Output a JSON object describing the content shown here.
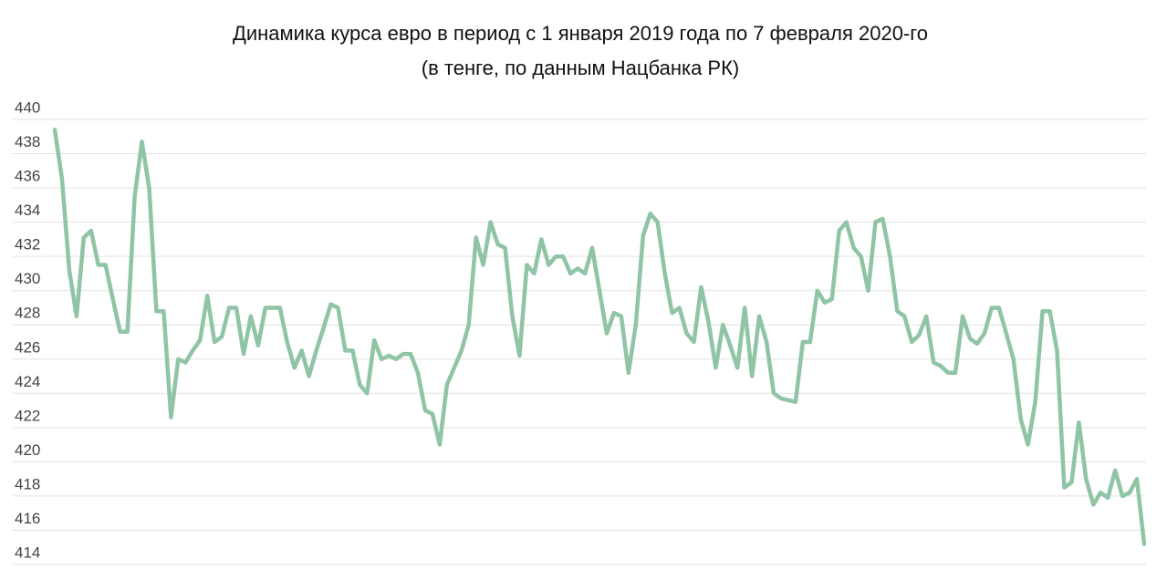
{
  "chart_data": {
    "type": "line",
    "title": "Динамика курса евро в период с 1 января 2019 года по 7 февраля 2020-го",
    "subtitle": "(в тенге, по данным Нацбанка РК)",
    "series": [
      {
        "color": "#8fc4a5",
        "values": [
          439.4,
          436.5,
          431.2,
          428.5,
          433.1,
          433.5,
          431.5,
          431.5,
          429.5,
          427.6,
          427.6,
          435.5,
          438.7,
          436,
          428.8,
          428.8,
          422.6,
          426,
          425.8,
          426.5,
          427.1,
          429.7,
          427,
          427.3,
          429,
          429,
          426.3,
          428.5,
          426.8,
          429,
          429,
          429,
          427,
          425.5,
          426.5,
          425,
          426.5,
          427.8,
          429.2,
          429,
          426.5,
          426.5,
          424.5,
          424,
          427.1,
          426,
          426.2,
          426,
          426.3,
          426.3,
          425.2,
          423,
          422.8,
          421,
          424.5,
          425.5,
          426.5,
          428,
          433.1,
          431.5,
          434,
          432.7,
          432.5,
          428.5,
          426.2,
          431.5,
          431,
          433,
          431.5,
          432,
          432,
          431,
          431.3,
          431,
          432.5,
          430,
          427.5,
          428.7,
          428.5,
          425.2,
          428,
          433.2,
          434.5,
          434,
          431,
          428.7,
          429,
          427.5,
          427,
          430.2,
          428.2,
          425.5,
          428,
          426.8,
          425.5,
          429,
          425,
          428.5,
          427,
          424,
          423.7,
          423.6,
          423.5,
          427,
          427,
          430,
          429.3,
          429.5,
          433.5,
          434,
          432.5,
          432,
          430,
          434,
          434.2,
          432,
          428.8,
          428.5,
          427,
          427.4,
          428.5,
          425.8,
          425.6,
          425.2,
          425.2,
          428.5,
          427.2,
          426.9,
          427.5,
          429,
          429,
          427.5,
          426,
          422.5,
          421,
          423.5,
          428.8,
          428.8,
          426.5,
          418.5,
          418.8,
          422.3,
          419,
          417.5,
          418.2,
          417.9,
          419.5,
          418,
          418.2,
          419,
          415.2
        ]
      }
    ],
    "ylim": [
      414,
      440
    ],
    "yticks": [
      414,
      416,
      418,
      420,
      422,
      424,
      426,
      428,
      430,
      432,
      434,
      436,
      438,
      440
    ],
    "grid": true
  }
}
